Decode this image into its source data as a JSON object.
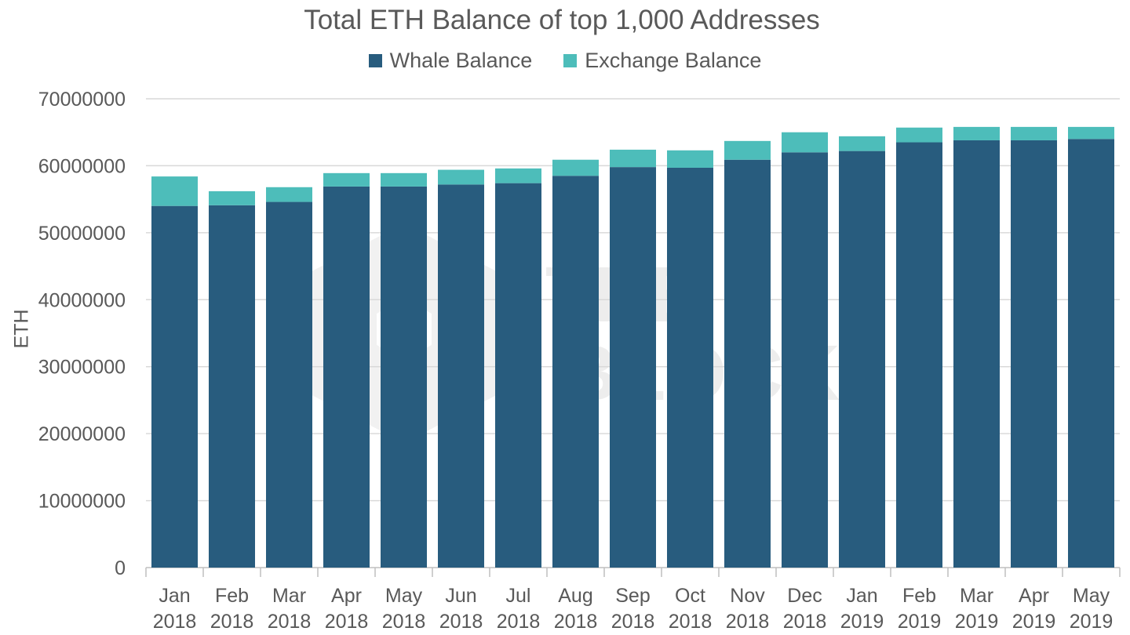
{
  "chart_data": {
    "type": "bar",
    "stacked": true,
    "title": "Total ETH Balance of top 1,000 Addresses",
    "xlabel": "",
    "ylabel": "ETH",
    "ylim": [
      0,
      70000000
    ],
    "yticks": [
      "0",
      "10000000",
      "20000000",
      "30000000",
      "40000000",
      "50000000",
      "60000000",
      "70000000"
    ],
    "grid": true,
    "legend_position": "top",
    "categories": [
      [
        "Jan",
        "2018"
      ],
      [
        "Feb",
        "2018"
      ],
      [
        "Mar",
        "2018"
      ],
      [
        "Apr",
        "2018"
      ],
      [
        "May",
        "2018"
      ],
      [
        "Jun",
        "2018"
      ],
      [
        "Jul",
        "2018"
      ],
      [
        "Aug",
        "2018"
      ],
      [
        "Sep",
        "2018"
      ],
      [
        "Oct",
        "2018"
      ],
      [
        "Nov",
        "2018"
      ],
      [
        "Dec",
        "2018"
      ],
      [
        "Jan",
        "2019"
      ],
      [
        "Feb",
        "2019"
      ],
      [
        "Mar",
        "2019"
      ],
      [
        "Apr",
        "2019"
      ],
      [
        "May",
        "2019"
      ]
    ],
    "series": [
      {
        "name": "Whale Balance",
        "color": "#285C7E",
        "values": [
          54000000,
          54100000,
          54600000,
          56900000,
          56900000,
          57200000,
          57400000,
          58500000,
          59800000,
          59700000,
          60900000,
          62000000,
          62200000,
          63500000,
          63800000,
          63800000,
          64000000
        ]
      },
      {
        "name": "Exchange Balance",
        "color": "#4DBDBA",
        "values": [
          4400000,
          2100000,
          2200000,
          2000000,
          2000000,
          2200000,
          2200000,
          2400000,
          2600000,
          2600000,
          2800000,
          3000000,
          2200000,
          2200000,
          2000000,
          2000000,
          1800000
        ]
      }
    ]
  },
  "watermark_text": [
    "THE",
    "BLOCK"
  ]
}
